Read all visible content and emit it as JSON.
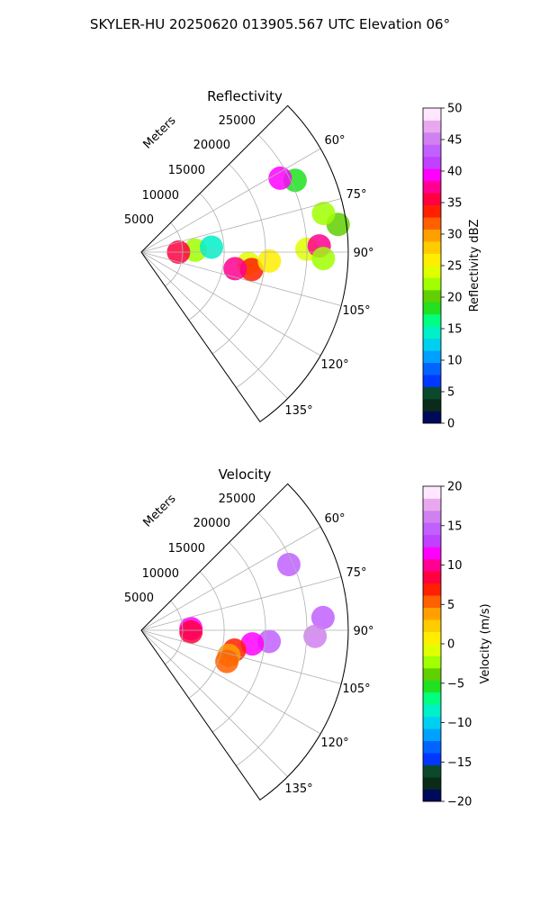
{
  "suptitle": "SKYLER-HU  20250620  013905.567 UTC Elevation 06°",
  "chart_data": [
    {
      "type": "heatmap",
      "subtype": "polar-sector-ppi",
      "title": "Reflectivity",
      "r_axis_label": "Meters",
      "r_ticks": [
        5000,
        10000,
        15000,
        20000,
        25000
      ],
      "r_tick_labels": [
        "5000",
        "10000",
        "15000",
        "20000",
        "25000"
      ],
      "r_max": 25000,
      "theta_range_deg": [
        45,
        145
      ],
      "theta_ticks": [
        60,
        75,
        90,
        105,
        120,
        135
      ],
      "theta_tick_labels": [
        "60°",
        "75°",
        "90°",
        "105°",
        "120°",
        "135°"
      ],
      "grid": true,
      "colorbar": {
        "label": "Reflectivity dBZ",
        "min": 0,
        "max": 50,
        "ticks": [
          0,
          5,
          10,
          15,
          20,
          25,
          30,
          35,
          40,
          45,
          50
        ],
        "tick_labels": [
          "0",
          "5",
          "10",
          "15",
          "20",
          "25",
          "30",
          "35",
          "40",
          "45",
          "50"
        ],
        "colors": [
          "#000a5a",
          "#0a2a1a",
          "#0a4a2a",
          "#0038ff",
          "#0064ff",
          "#00a0ff",
          "#00d0f0",
          "#00f0c8",
          "#00ff80",
          "#20e020",
          "#60d000",
          "#a0ff00",
          "#e0ff00",
          "#ffee00",
          "#ffcc00",
          "#ffa000",
          "#ff6000",
          "#ff2000",
          "#ff0040",
          "#ff0090",
          "#ff00ff",
          "#c040ff",
          "#c060ff",
          "#d080f0",
          "#e8a8f0",
          "#ffe8ff"
        ]
      },
      "cells": [
        {
          "theta": 82,
          "r": 24000,
          "value": 20
        },
        {
          "theta": 78,
          "r": 22500,
          "value": 22
        },
        {
          "theta": 88,
          "r": 6500,
          "value": 22
        },
        {
          "theta": 90,
          "r": 4500,
          "value": 35
        },
        {
          "theta": 86,
          "r": 8500,
          "value": 15
        },
        {
          "theta": 96,
          "r": 13000,
          "value": 24
        },
        {
          "theta": 99,
          "r": 13500,
          "value": 33
        },
        {
          "theta": 100,
          "r": 11500,
          "value": 38
        },
        {
          "theta": 94,
          "r": 15500,
          "value": 26
        },
        {
          "theta": 89,
          "r": 20000,
          "value": 24
        },
        {
          "theta": 88,
          "r": 21500,
          "value": 38
        },
        {
          "theta": 92,
          "r": 22000,
          "value": 22
        },
        {
          "theta": 65,
          "r": 20500,
          "value": 18
        },
        {
          "theta": 62,
          "r": 19000,
          "value": 40
        }
      ]
    },
    {
      "type": "heatmap",
      "subtype": "polar-sector-ppi",
      "title": "Velocity",
      "r_axis_label": "Meters",
      "r_ticks": [
        5000,
        10000,
        15000,
        20000,
        25000
      ],
      "r_tick_labels": [
        "5000",
        "10000",
        "15000",
        "20000",
        "25000"
      ],
      "r_max": 25000,
      "theta_range_deg": [
        45,
        145
      ],
      "theta_ticks": [
        60,
        75,
        90,
        105,
        120,
        135
      ],
      "theta_tick_labels": [
        "60°",
        "75°",
        "90°",
        "105°",
        "120°",
        "135°"
      ],
      "grid": true,
      "colorbar": {
        "label": "Velocity (m/s)",
        "min": -20,
        "max": 20,
        "ticks": [
          -20,
          -15,
          -10,
          -5,
          0,
          5,
          10,
          15,
          20
        ],
        "tick_labels": [
          "−20",
          "−15",
          "−10",
          "−5",
          "0",
          "5",
          "10",
          "15",
          "20"
        ],
        "colors": [
          "#000a5a",
          "#0a2a1a",
          "#0a4a2a",
          "#0038ff",
          "#0064ff",
          "#00a0ff",
          "#00d0f0",
          "#00f0c8",
          "#00ff80",
          "#20e020",
          "#60d000",
          "#a0ff00",
          "#e0ff00",
          "#ffee00",
          "#ffcc00",
          "#ffa000",
          "#ff6000",
          "#ff2000",
          "#ff0040",
          "#ff0090",
          "#ff00ff",
          "#c040ff",
          "#c060ff",
          "#d080f0",
          "#e8a8f0",
          "#ffe8ff"
        ]
      },
      "cells": [
        {
          "theta": 66,
          "r": 19500,
          "value": 15
        },
        {
          "theta": 88,
          "r": 6000,
          "value": 11
        },
        {
          "theta": 92,
          "r": 6000,
          "value": 9
        },
        {
          "theta": 86,
          "r": 22000,
          "value": 15
        },
        {
          "theta": 92,
          "r": 21000,
          "value": 16
        },
        {
          "theta": 95,
          "r": 15500,
          "value": 14
        },
        {
          "theta": 97,
          "r": 13500,
          "value": 11
        },
        {
          "theta": 102,
          "r": 11500,
          "value": 7
        },
        {
          "theta": 106,
          "r": 11000,
          "value": 4
        },
        {
          "theta": 110,
          "r": 11000,
          "value": 6
        }
      ]
    }
  ]
}
